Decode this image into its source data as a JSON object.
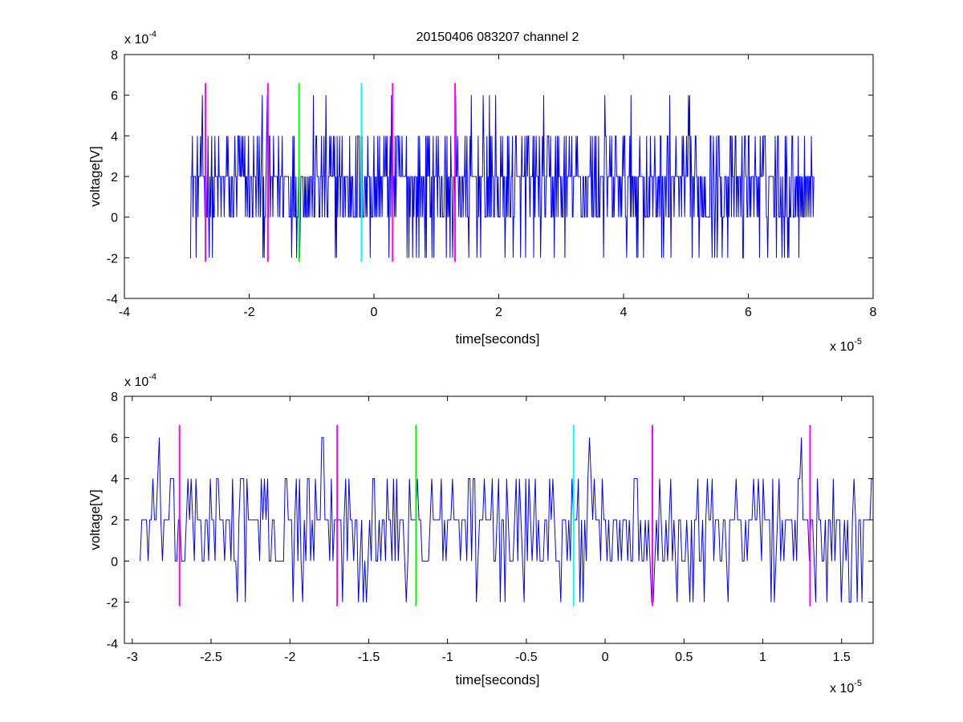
{
  "figure_title": "20150406 083207 channel 2",
  "colors": {
    "signal": "#0000ff",
    "magenta": "#ff00ff",
    "green": "#00ff00",
    "cyan": "#00ffff",
    "axes": "#000000",
    "background": "#ffffff"
  },
  "chart_data": [
    {
      "type": "line",
      "title": "20150406 083207 channel 2",
      "xlabel": "time[seconds]",
      "ylabel": "voltage[V]",
      "x_exponent_label": "x 10",
      "x_exponent": "-5",
      "y_exponent_label": "x 10",
      "y_exponent": "-4",
      "xlim": [
        -4,
        8
      ],
      "ylim": [
        -4,
        8
      ],
      "x_ticks": [
        -4,
        -2,
        0,
        2,
        4,
        6,
        8
      ],
      "x_tick_labels": [
        "-4",
        "-2",
        "0",
        "2",
        "4",
        "6",
        "8"
      ],
      "y_ticks": [
        -4,
        -2,
        0,
        2,
        4,
        6,
        8
      ],
      "y_tick_labels": [
        "-4",
        "-2",
        "0",
        "2",
        "4",
        "6",
        "8"
      ],
      "grid": false,
      "series": [
        {
          "style": "step-noise",
          "color": "#0000ff",
          "x_start": -2.95,
          "x_end": 7.05,
          "levels": [
            -2,
            0,
            2,
            4,
            6
          ]
        }
      ],
      "vertical_lines": [
        {
          "x": -2.7,
          "y_from": -2.2,
          "y_to": 6.6,
          "color": "#ff00ff"
        },
        {
          "x": -1.7,
          "y_from": -2.2,
          "y_to": 6.6,
          "color": "#ff00ff"
        },
        {
          "x": -1.2,
          "y_from": -2.2,
          "y_to": 6.6,
          "color": "#00ff00"
        },
        {
          "x": -0.2,
          "y_from": -2.2,
          "y_to": 6.6,
          "color": "#00ffff"
        },
        {
          "x": 0.3,
          "y_from": -2.2,
          "y_to": 6.6,
          "color": "#ff00ff"
        },
        {
          "x": 1.3,
          "y_from": -2.2,
          "y_to": 6.6,
          "color": "#ff00ff"
        }
      ]
    },
    {
      "type": "line",
      "title": "",
      "xlabel": "time[seconds]",
      "ylabel": "voltage[V]",
      "x_exponent_label": "x 10",
      "x_exponent": "-5",
      "y_exponent_label": "x 10",
      "y_exponent": "-4",
      "xlim": [
        -3.05,
        1.7
      ],
      "ylim": [
        -4,
        8
      ],
      "x_ticks": [
        -3,
        -2.5,
        -2,
        -1.5,
        -1,
        -0.5,
        0,
        0.5,
        1,
        1.5
      ],
      "x_tick_labels": [
        "-3",
        "-2.5",
        "-2",
        "-1.5",
        "-1",
        "-0.5",
        "0",
        "0.5",
        "1",
        "1.5"
      ],
      "y_ticks": [
        -4,
        -2,
        0,
        2,
        4,
        6,
        8
      ],
      "y_tick_labels": [
        "-4",
        "-2",
        "0",
        "2",
        "4",
        "6",
        "8"
      ],
      "grid": false,
      "series": [
        {
          "style": "step-noise",
          "color": "#0000ff",
          "x_start": -2.95,
          "x_end": 1.7,
          "levels": [
            -2,
            0,
            2,
            4,
            6
          ]
        }
      ],
      "vertical_lines": [
        {
          "x": -2.7,
          "y_from": -2.2,
          "y_to": 6.6,
          "color": "#ff00ff"
        },
        {
          "x": -1.7,
          "y_from": -2.2,
          "y_to": 6.6,
          "color": "#ff00ff"
        },
        {
          "x": -1.2,
          "y_from": -2.2,
          "y_to": 6.6,
          "color": "#00ff00"
        },
        {
          "x": -0.2,
          "y_from": -2.2,
          "y_to": 6.6,
          "color": "#00ffff"
        },
        {
          "x": 0.3,
          "y_from": -2.2,
          "y_to": 6.6,
          "color": "#ff00ff"
        },
        {
          "x": 1.3,
          "y_from": -2.2,
          "y_to": 6.6,
          "color": "#ff00ff"
        }
      ]
    }
  ]
}
